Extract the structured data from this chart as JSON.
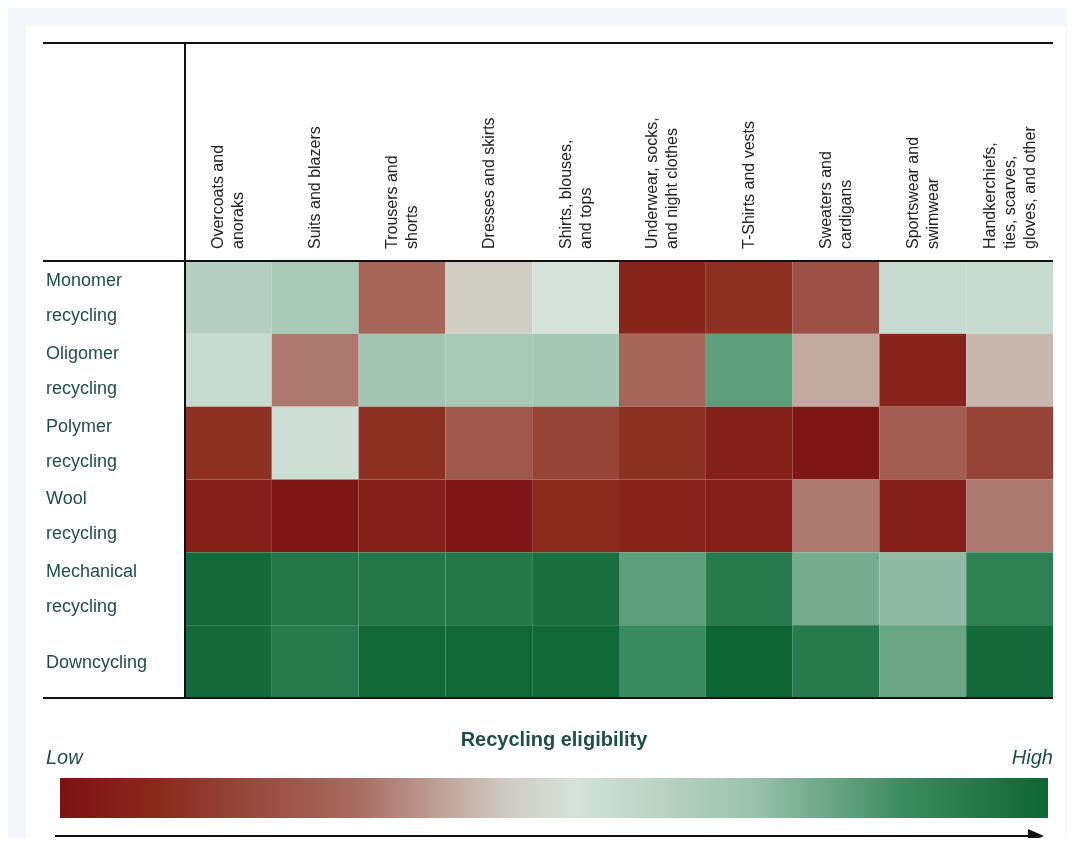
{
  "chart_data": {
    "type": "heatmap",
    "categories": [
      "Overcoats and anoraks",
      "Suits and blazers",
      "Trousers and shorts",
      "Dresses and skirts",
      "Shirts, blouses, and tops",
      "Underwear, socks, and night clothes",
      "T-Shirts and vests",
      "Sweaters and cardigans",
      "Sportswear and swimwear",
      "Handkerchiefs, ties, scarves, gloves, and other"
    ],
    "y_categories": [
      "Monomer recycling",
      "Oligomer recycling",
      "Polymer recycling",
      "Wool recycling",
      "Mechanical recycling",
      "Downcycling"
    ],
    "cells": [
      [
        0.62,
        0.66,
        0.28,
        0.46,
        0.52,
        0.08,
        0.12,
        0.22,
        0.56,
        0.56
      ],
      [
        0.56,
        0.32,
        0.68,
        0.66,
        0.67,
        0.28,
        0.8,
        0.4,
        0.08,
        0.42
      ],
      [
        0.12,
        0.54,
        0.12,
        0.24,
        0.18,
        0.12,
        0.06,
        0.02,
        0.26,
        0.18
      ],
      [
        0.06,
        0.02,
        0.06,
        0.02,
        0.1,
        0.07,
        0.05,
        0.32,
        0.05,
        0.32
      ],
      [
        0.98,
        0.93,
        0.93,
        0.93,
        0.96,
        0.8,
        0.92,
        0.76,
        0.72,
        0.9
      ],
      [
        0.98,
        0.92,
        0.99,
        0.99,
        0.99,
        0.86,
        1.0,
        0.92,
        0.78,
        0.98
      ]
    ],
    "clabel": "Recycling eligibility",
    "clim": [
      0,
      1
    ],
    "cticks": [
      {
        "value": 0,
        "label": "Low"
      },
      {
        "value": 1,
        "label": "High"
      }
    ]
  }
}
